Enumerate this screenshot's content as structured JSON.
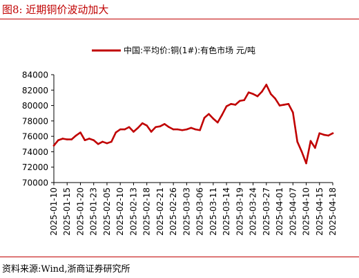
{
  "figure_title": "图8:   近期铜价波动加大",
  "source": "资料来源:Wind,浙商证券研究所",
  "colors": {
    "accent": "#c00000",
    "series": "#c00000",
    "axis": "#000000"
  },
  "chart_data": {
    "type": "line",
    "title": "",
    "xlabel": "",
    "ylabel": "",
    "ylim": [
      70000,
      84000
    ],
    "yticks": [
      70000,
      72000,
      74000,
      76000,
      78000,
      80000,
      82000,
      84000
    ],
    "yticklabels": [
      "70000",
      "72000",
      "74000",
      "76000",
      "78000",
      "80000",
      "82000",
      "84000"
    ],
    "grid": false,
    "legend": "top-center",
    "xticklabels": [
      "2025-01-10",
      "2025-01-15",
      "2025-01-20",
      "2025-01-23",
      "2025-02-05",
      "2025-02-10",
      "2025-02-13",
      "2025-02-18",
      "2025-02-21",
      "2025-02-26",
      "2025-03-03",
      "2025-03-06",
      "2025-03-11",
      "2025-03-14",
      "2025-03-19",
      "2025-03-24",
      "2025-03-27",
      "2025-04-01",
      "2025-04-07",
      "2025-04-10",
      "2025-04-15",
      "2025-04-18"
    ],
    "series": [
      {
        "name": "中国:平均价:铜(1#):有色市场 元/吨",
        "x": [
          "2025-01-10",
          "2025-01-13",
          "2025-01-14",
          "2025-01-15",
          "2025-01-16",
          "2025-01-17",
          "2025-01-20",
          "2025-01-21",
          "2025-01-22",
          "2025-01-23",
          "2025-01-24",
          "2025-01-27",
          "2025-02-05",
          "2025-02-06",
          "2025-02-07",
          "2025-02-10",
          "2025-02-11",
          "2025-02-12",
          "2025-02-13",
          "2025-02-14",
          "2025-02-17",
          "2025-02-18",
          "2025-02-19",
          "2025-02-20",
          "2025-02-21",
          "2025-02-24",
          "2025-02-25",
          "2025-02-26",
          "2025-02-27",
          "2025-02-28",
          "2025-03-03",
          "2025-03-04",
          "2025-03-05",
          "2025-03-06",
          "2025-03-07",
          "2025-03-10",
          "2025-03-11",
          "2025-03-12",
          "2025-03-13",
          "2025-03-14",
          "2025-03-17",
          "2025-03-18",
          "2025-03-19",
          "2025-03-20",
          "2025-03-21",
          "2025-03-24",
          "2025-03-25",
          "2025-03-26",
          "2025-03-27",
          "2025-03-28",
          "2025-03-31",
          "2025-04-01",
          "2025-04-02",
          "2025-04-03",
          "2025-04-07",
          "2025-04-08",
          "2025-04-09",
          "2025-04-10",
          "2025-04-11",
          "2025-04-14",
          "2025-04-15",
          "2025-04-16",
          "2025-04-17",
          "2025-04-18"
        ],
        "values": [
          74800,
          75500,
          75700,
          75600,
          75600,
          76100,
          76500,
          75500,
          75700,
          75500,
          75000,
          75300,
          75100,
          75300,
          76500,
          76900,
          76900,
          77200,
          76600,
          77100,
          77700,
          77400,
          76600,
          77200,
          77300,
          77600,
          77200,
          76900,
          76900,
          76800,
          76900,
          77100,
          76900,
          76800,
          78400,
          78900,
          78300,
          77800,
          78800,
          79900,
          80200,
          80100,
          80600,
          80700,
          81700,
          81500,
          81200,
          81800,
          82700,
          81500,
          80900,
          80000,
          80100,
          80200,
          79100,
          75300,
          74000,
          72500,
          75400,
          74500,
          76400,
          76200,
          76100,
          76400
        ]
      }
    ]
  }
}
